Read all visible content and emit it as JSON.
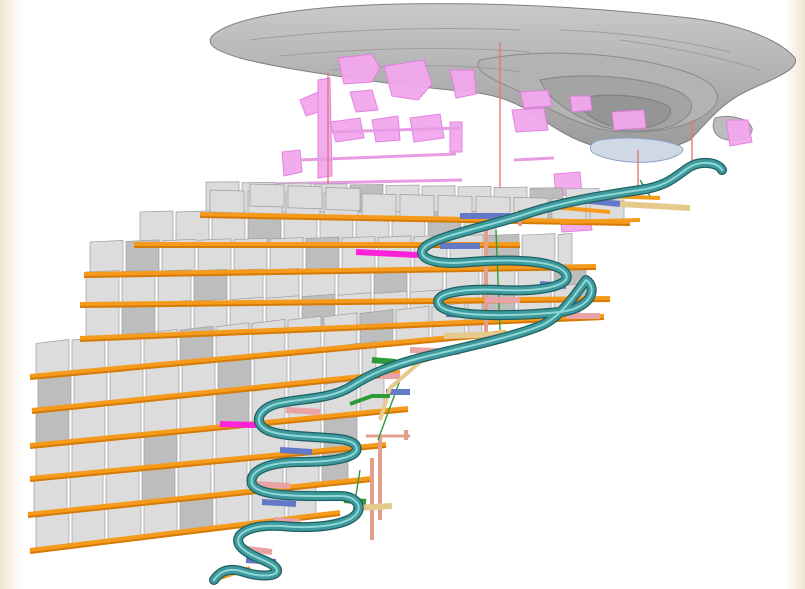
{
  "scene": {
    "name": "underground-mine-3d-model",
    "colors": {
      "background": "#ffffff",
      "frame_tint": "#f4ede2",
      "open_pit": "#a9a9a9",
      "open_pit_dark": "#8c8c8c",
      "open_pit_light": "#c8c8c8",
      "ore_body": "#f3a6f0",
      "ore_body_edge": "#e37fe0",
      "stope_panel": "#dcdcdc",
      "stope_panel_edge": "#9e9e9e",
      "stope_panel_shadow": "#bdbdbd",
      "level_drive": "#f59a1a",
      "level_drive_dark": "#d57a05",
      "decline": "#3f9a9c",
      "decline_light": "#6cc3c4",
      "decline_dark": "#23686a",
      "crosscut_blue": "#6478c8",
      "crosscut_pink": "#e9a2a6",
      "crosscut_tan": "#e6c98d",
      "crosscut_green": "#2e9b3a",
      "magenta_drive": "#ff1fd8",
      "raise": "#e2a08c",
      "shaft_line": "#e06e6e"
    },
    "icons": [
      "open-pit-shape",
      "ore-body-shape",
      "decline-ramp",
      "level-drive",
      "stope-panel",
      "raise-shaft"
    ]
  }
}
